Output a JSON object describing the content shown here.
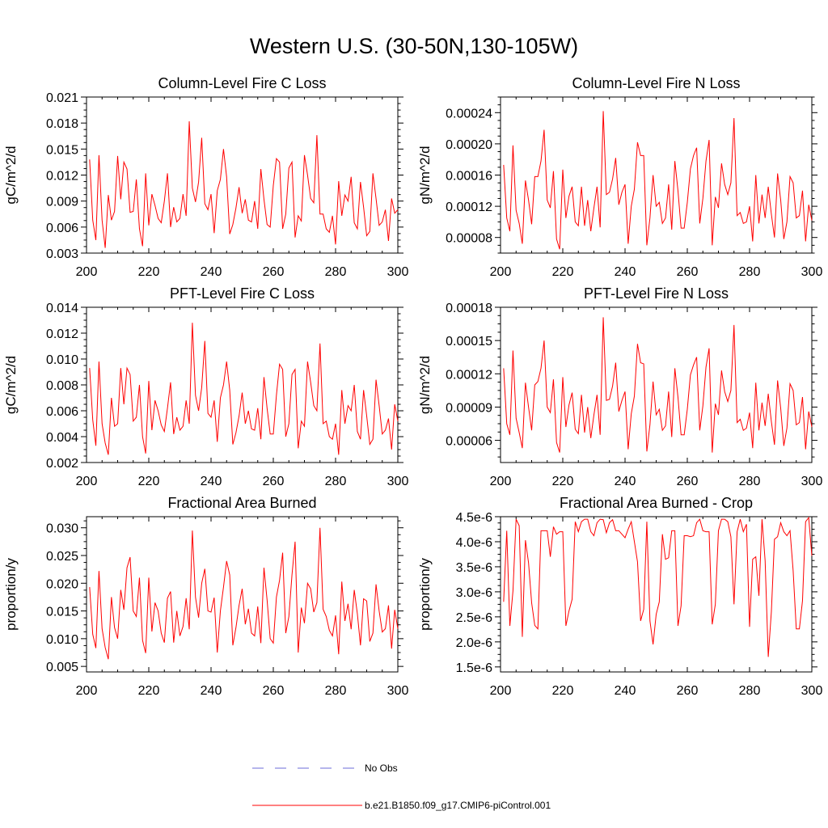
{
  "figure": {
    "title": "Western U.S. (30-50N,130-105W)"
  },
  "legend": {
    "entries": [
      {
        "label": "No Obs",
        "style": "dashed",
        "color": "#6b6bd8"
      },
      {
        "label": "b.e21.B1850.f09_g17.CMIP6-piControl.001",
        "style": "solid",
        "color": "#ff0000"
      }
    ]
  },
  "chart_data": [
    {
      "type": "line",
      "title": "Column-Level Fire C Loss",
      "ylabel": "gC/m^2/d",
      "xlim": [
        200,
        300
      ],
      "ylim": [
        0.003,
        0.021
      ],
      "xticks": [
        200,
        220,
        240,
        260,
        280,
        300
      ],
      "xtick_labels": [
        "200",
        "220",
        "240",
        "260",
        "280",
        "300"
      ],
      "yticks": [
        0.003,
        0.006,
        0.009,
        0.012,
        0.015,
        0.018,
        0.021
      ],
      "ytick_labels": [
        "0.003",
        "0.006",
        "0.009",
        "0.012",
        "0.015",
        "0.018",
        "0.021"
      ],
      "color": "#ff0000",
      "x_start": 201,
      "values": [
        0.0138,
        0.0068,
        0.0045,
        0.0143,
        0.0068,
        0.0036,
        0.0097,
        0.0068,
        0.0078,
        0.0142,
        0.0092,
        0.0135,
        0.0127,
        0.0077,
        0.0078,
        0.0115,
        0.0058,
        0.0038,
        0.0122,
        0.0062,
        0.0098,
        0.0085,
        0.007,
        0.0065,
        0.009,
        0.0122,
        0.006,
        0.0083,
        0.0066,
        0.007,
        0.0098,
        0.0073,
        0.0182,
        0.0105,
        0.0089,
        0.0112,
        0.0163,
        0.0087,
        0.008,
        0.0098,
        0.0053,
        0.0102,
        0.0115,
        0.015,
        0.0118,
        0.0052,
        0.0063,
        0.0082,
        0.0106,
        0.0076,
        0.0092,
        0.0068,
        0.0066,
        0.009,
        0.0058,
        0.0127,
        0.0092,
        0.0063,
        0.006,
        0.0108,
        0.0139,
        0.0135,
        0.0058,
        0.0075,
        0.0128,
        0.0135,
        0.0048,
        0.0073,
        0.0067,
        0.0143,
        0.012,
        0.0093,
        0.0088,
        0.0166,
        0.0075,
        0.0075,
        0.0058,
        0.0054,
        0.0073,
        0.004,
        0.0113,
        0.0073,
        0.0097,
        0.009,
        0.0118,
        0.0065,
        0.0058,
        0.0112,
        0.0083,
        0.005,
        0.0055,
        0.0122,
        0.0093,
        0.0062,
        0.0066,
        0.008,
        0.0044,
        0.0093,
        0.0076,
        0.008
      ]
    },
    {
      "type": "line",
      "title": "Column-Level Fire N Loss",
      "ylabel": "gN/m^2/d",
      "xlim": [
        200,
        300
      ],
      "ylim": [
        6e-05,
        0.00026
      ],
      "xticks": [
        200,
        220,
        240,
        260,
        280,
        300
      ],
      "xtick_labels": [
        "200",
        "220",
        "240",
        "260",
        "280",
        "300"
      ],
      "yticks": [
        8e-05,
        0.00012,
        0.00016,
        0.0002,
        0.00024
      ],
      "ytick_labels": [
        "0.00008",
        "0.00012",
        "0.00016",
        "0.00020",
        "0.00024"
      ],
      "color": "#ff0000",
      "x_start": 201,
      "values": [
        0.000173,
        0.000105,
        8.8e-05,
        0.000198,
        0.000115,
        9.8e-05,
        7.2e-05,
        0.000153,
        0.000128,
        9.7e-05,
        0.000158,
        0.000158,
        0.000178,
        0.000218,
        0.000128,
        0.000118,
        0.000165,
        7.8e-05,
        6.5e-05,
        0.000167,
        0.000105,
        0.000133,
        0.000145,
        0.0001,
        9.5e-05,
        0.000145,
        9.5e-05,
        0.000128,
        8.8e-05,
        0.000118,
        0.000145,
        9.3e-05,
        0.000242,
        0.000135,
        0.000138,
        0.000155,
        0.000182,
        0.000122,
        0.000138,
        0.000148,
        7.2e-05,
        0.00012,
        0.000142,
        0.000202,
        0.000185,
        0.000185,
        7e-05,
        0.000105,
        0.00016,
        0.00012,
        0.000125,
        9.8e-05,
        0.000105,
        0.000148,
        9e-05,
        0.000178,
        0.00014,
        9.2e-05,
        9.2e-05,
        0.000125,
        0.000168,
        0.000185,
        0.000195,
        9.8e-05,
        0.00013,
        0.000178,
        0.000205,
        7e-05,
        0.000132,
        0.000118,
        0.000175,
        0.000148,
        0.000135,
        0.00015,
        0.000233,
        0.000108,
        0.000112,
        9.8e-05,
        0.0001,
        0.00012,
        7.5e-05,
        0.00016,
        9.8e-05,
        0.000135,
        0.000105,
        0.000145,
        0.00011,
        8e-05,
        0.000162,
        0.000128,
        7.8e-05,
        0.0001,
        0.000158,
        0.00015,
        0.000105,
        0.000108,
        0.00014,
        7.5e-05,
        0.000122,
        0.000102
      ]
    },
    {
      "type": "line",
      "title": "PFT-Level Fire C Loss",
      "ylabel": "gC/m^2/d",
      "xlim": [
        200,
        300
      ],
      "ylim": [
        0.002,
        0.014
      ],
      "xticks": [
        200,
        220,
        240,
        260,
        280,
        300
      ],
      "xtick_labels": [
        "200",
        "220",
        "240",
        "260",
        "280",
        "300"
      ],
      "yticks": [
        0.002,
        0.004,
        0.006,
        0.008,
        0.01,
        0.012,
        0.014
      ],
      "ytick_labels": [
        "0.002",
        "0.004",
        "0.006",
        "0.008",
        "0.010",
        "0.012",
        "0.014"
      ],
      "color": "#ff0000",
      "x_start": 201,
      "values": [
        0.0093,
        0.0053,
        0.0033,
        0.0098,
        0.005,
        0.0035,
        0.0026,
        0.007,
        0.0048,
        0.005,
        0.0093,
        0.0065,
        0.0093,
        0.0088,
        0.0052,
        0.0055,
        0.008,
        0.004,
        0.0027,
        0.0083,
        0.0045,
        0.0068,
        0.006,
        0.0049,
        0.0044,
        0.0062,
        0.0082,
        0.0042,
        0.0055,
        0.0045,
        0.0048,
        0.0068,
        0.005,
        0.0128,
        0.0072,
        0.006,
        0.0078,
        0.0114,
        0.0058,
        0.0055,
        0.0068,
        0.0036,
        0.007,
        0.008,
        0.0098,
        0.0076,
        0.0034,
        0.0043,
        0.0056,
        0.0074,
        0.005,
        0.006,
        0.0046,
        0.0045,
        0.0062,
        0.0038,
        0.0086,
        0.0062,
        0.0042,
        0.0042,
        0.0072,
        0.0096,
        0.0092,
        0.004,
        0.005,
        0.0088,
        0.0092,
        0.0031,
        0.0052,
        0.0048,
        0.0098,
        0.0082,
        0.0064,
        0.006,
        0.0112,
        0.005,
        0.0052,
        0.004,
        0.0038,
        0.005,
        0.0026,
        0.0076,
        0.005,
        0.0064,
        0.006,
        0.008,
        0.0044,
        0.0038,
        0.0076,
        0.0056,
        0.0034,
        0.0038,
        0.0084,
        0.0064,
        0.0042,
        0.0045,
        0.0054,
        0.003,
        0.0065,
        0.0052
      ]
    },
    {
      "type": "line",
      "title": "PFT-Level Fire N Loss",
      "ylabel": "gN/m^2/d",
      "xlim": [
        200,
        300
      ],
      "ylim": [
        4e-05,
        0.00018
      ],
      "xticks": [
        200,
        220,
        240,
        260,
        280,
        300
      ],
      "xtick_labels": [
        "200",
        "220",
        "240",
        "260",
        "280",
        "300"
      ],
      "yticks": [
        6e-05,
        9e-05,
        0.00012,
        0.00015,
        0.00018
      ],
      "ytick_labels": [
        "0.00006",
        "0.00009",
        "0.00012",
        "0.00015",
        "0.00018"
      ],
      "color": "#ff0000",
      "x_start": 201,
      "values": [
        0.000125,
        7.5e-05,
        6.5e-05,
        0.000141,
        8e-05,
        6.7e-05,
        5.3e-05,
        0.000112,
        9e-05,
        6.9e-05,
        0.00011,
        0.000113,
        0.000125,
        0.00015,
        9e-05,
        8.5e-05,
        0.000115,
        5.8e-05,
        4.9e-05,
        0.000117,
        7.2e-05,
        9.2e-05,
        0.000103,
        7e-05,
        6.6e-05,
        0.000101,
        6.7e-05,
        9e-05,
        6.2e-05,
        8.3e-05,
        0.000101,
        6.5e-05,
        0.000171,
        9.6e-05,
        9.7e-05,
        0.000109,
        0.00013,
        8.6e-05,
        9.6e-05,
        0.000104,
        5.2e-05,
        8.4e-05,
        0.0001,
        0.000147,
        0.00013,
        0.000129,
        5e-05,
        7.4e-05,
        0.000113,
        8.3e-05,
        8.8e-05,
        6.9e-05,
        7.3e-05,
        0.000104,
        6.3e-05,
        0.000125,
        9.9e-05,
        6.5e-05,
        6.5e-05,
        8.8e-05,
        0.000119,
        0.000128,
        0.000135,
        6.9e-05,
        9.1e-05,
        0.000126,
        0.000143,
        4.9e-05,
        9.3e-05,
        8.3e-05,
        0.000123,
        0.000104,
        9.5e-05,
        0.000105,
        0.000164,
        7.6e-05,
        7.9e-05,
        6.9e-05,
        7.1e-05,
        8.5e-05,
        5.3e-05,
        0.000112,
        6.9e-05,
        9.4e-05,
        7.3e-05,
        0.000102,
        7.7e-05,
        5.6e-05,
        0.000114,
        8.9e-05,
        5.5e-05,
        7.1e-05,
        0.000111,
        0.000105,
        7.4e-05,
        7.6e-05,
        9.9e-05,
        5.2e-05,
        8.6e-05,
        7.2e-05
      ]
    },
    {
      "type": "line",
      "title": "Fractional Area Burned",
      "ylabel": "proportion/y",
      "xlim": [
        200,
        300
      ],
      "ylim": [
        0.004,
        0.032
      ],
      "xticks": [
        200,
        220,
        240,
        260,
        280,
        300
      ],
      "xtick_labels": [
        "200",
        "220",
        "240",
        "260",
        "280",
        "300"
      ],
      "yticks": [
        0.005,
        0.01,
        0.015,
        0.02,
        0.025,
        0.03
      ],
      "ytick_labels": [
        "0.005",
        "0.010",
        "0.015",
        "0.020",
        "0.025",
        "0.030"
      ],
      "color": "#ff0000",
      "x_start": 201,
      "values": [
        0.0193,
        0.0108,
        0.0083,
        0.0222,
        0.0118,
        0.0084,
        0.0063,
        0.0175,
        0.012,
        0.01,
        0.0188,
        0.0152,
        0.0228,
        0.0247,
        0.015,
        0.014,
        0.021,
        0.0097,
        0.0074,
        0.021,
        0.0113,
        0.0165,
        0.015,
        0.011,
        0.0093,
        0.0173,
        0.0185,
        0.0093,
        0.015,
        0.0105,
        0.0122,
        0.0173,
        0.0117,
        0.0295,
        0.0175,
        0.0138,
        0.02,
        0.0226,
        0.015,
        0.0148,
        0.0174,
        0.0075,
        0.015,
        0.0193,
        0.024,
        0.0215,
        0.0088,
        0.012,
        0.016,
        0.019,
        0.0126,
        0.0154,
        0.011,
        0.0105,
        0.0158,
        0.0092,
        0.0228,
        0.017,
        0.01,
        0.0092,
        0.0175,
        0.0205,
        0.0255,
        0.011,
        0.014,
        0.0215,
        0.0275,
        0.0075,
        0.0156,
        0.0128,
        0.02,
        0.019,
        0.0148,
        0.0165,
        0.03,
        0.0153,
        0.014,
        0.0115,
        0.0105,
        0.0142,
        0.0072,
        0.0203,
        0.0132,
        0.0163,
        0.0117,
        0.0188,
        0.0145,
        0.0088,
        0.0172,
        0.0168,
        0.0095,
        0.011,
        0.0198,
        0.015,
        0.0112,
        0.0118,
        0.016,
        0.0082,
        0.0152,
        0.0118
      ]
    },
    {
      "type": "line",
      "title": "Fractional Area Burned - Crop",
      "ylabel": "proportion/y",
      "xlim": [
        200,
        300
      ],
      "ylim": [
        1.4e-06,
        4.5e-06
      ],
      "xticks": [
        200,
        220,
        240,
        260,
        280,
        300
      ],
      "xtick_labels": [
        "200",
        "220",
        "240",
        "260",
        "280",
        "300"
      ],
      "yticks": [
        1.5e-06,
        2e-06,
        2.5e-06,
        3e-06,
        3.5e-06,
        4e-06,
        4.5e-06
      ],
      "ytick_labels": [
        "1.5e-6",
        "2.0e-6",
        "2.5e-6",
        "3.0e-6",
        "3.5e-6",
        "4.0e-6",
        "4.5e-6"
      ],
      "color": "#ff0000",
      "x_start": 201,
      "values": [
        2.8e-06,
        4.22e-06,
        2.32e-06,
        3.02e-06,
        4.45e-06,
        4.32e-06,
        2.1e-06,
        4.03e-06,
        3.58e-06,
        2.78e-06,
        2.33e-06,
        2.26e-06,
        4.22e-06,
        4.22e-06,
        4.22e-06,
        3.7e-06,
        4.3e-06,
        4.15e-06,
        4.2e-06,
        4.2e-06,
        2.32e-06,
        2.62e-06,
        2.85e-06,
        4.4e-06,
        4.2e-06,
        4.4e-06,
        4.45e-06,
        4.45e-06,
        4.2e-06,
        4.12e-06,
        4.38e-06,
        4.45e-06,
        4.44e-06,
        4.18e-06,
        4.38e-06,
        4.44e-06,
        4.22e-06,
        4.22e-06,
        4.15e-06,
        4.08e-06,
        4.25e-06,
        4.4e-06,
        4e-06,
        3.6e-06,
        2.42e-06,
        2.65e-06,
        4.4e-06,
        2.42e-06,
        1.95e-06,
        2.55e-06,
        2.8e-06,
        4.15e-06,
        3.65e-06,
        3.68e-06,
        4.22e-06,
        4.22e-06,
        2.32e-06,
        2.72e-06,
        4.12e-06,
        4.12e-06,
        4.1e-06,
        4.12e-06,
        4.38e-06,
        4.45e-06,
        4.22e-06,
        4.2e-06,
        4.2e-06,
        2.35e-06,
        2.75e-06,
        4.22e-06,
        4.45e-06,
        4.45e-06,
        4.4e-06,
        4.1e-06,
        2.75e-06,
        4.2e-06,
        4.45e-06,
        4.2e-06,
        4.35e-06,
        2.3e-06,
        3.65e-06,
        3.7e-06,
        2.92e-06,
        4.45e-06,
        3.62e-06,
        1.7e-06,
        2.6e-06,
        4.05e-06,
        4.1e-06,
        4.38e-06,
        4.2e-06,
        4.12e-06,
        4.22e-06,
        3.42e-06,
        2.26e-06,
        2.26e-06,
        2.82e-06,
        4.4e-06,
        4.48e-06,
        3.72e-06
      ]
    }
  ]
}
